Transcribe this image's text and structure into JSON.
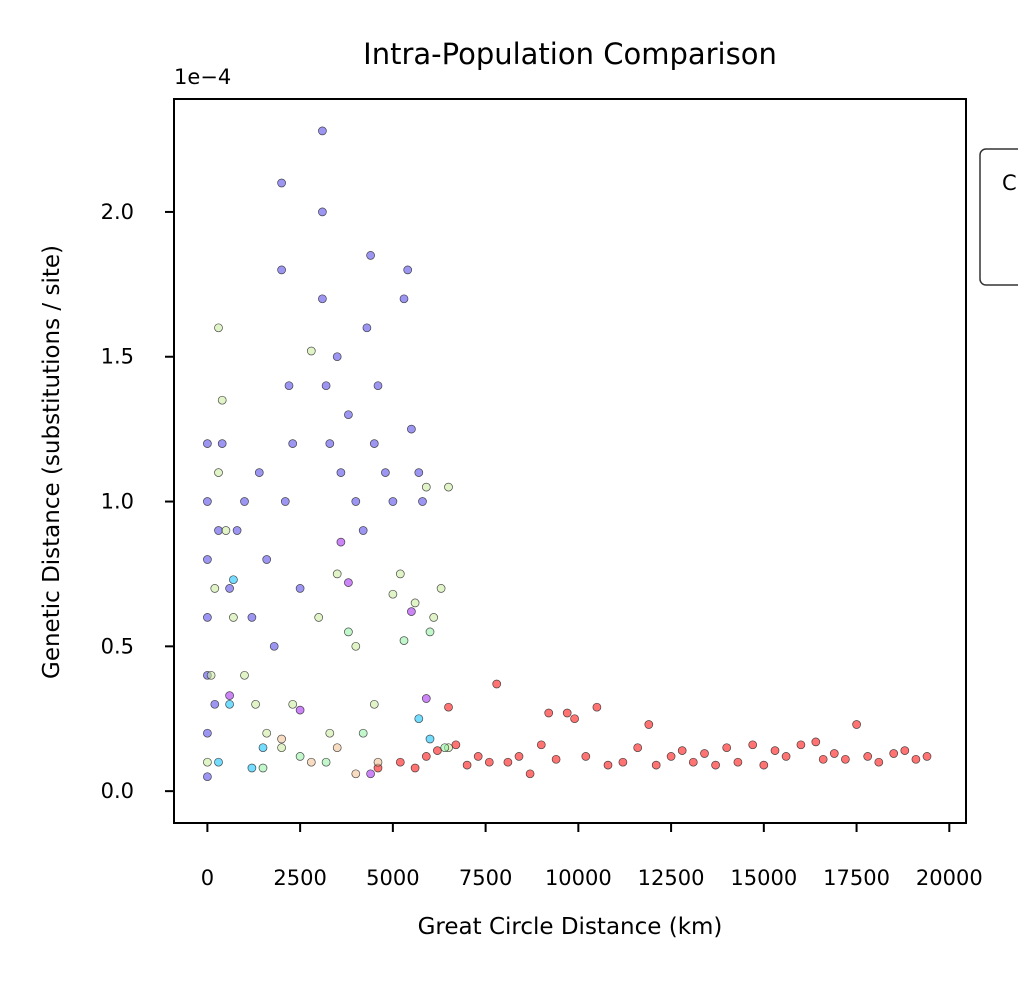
{
  "chart_data": {
    "type": "scatter",
    "title": "Intra-Population Comparison",
    "xlabel": "Great Circle Distance (km)",
    "ylabel": "Genetic Distance (substitutions / site)",
    "y_multiplier": "1e−4",
    "xlim": [
      -900,
      20450
    ],
    "ylim": [
      -0.11,
      2.39
    ],
    "x_ticks": [
      0,
      2500,
      5000,
      7500,
      10000,
      12500,
      15000,
      17500,
      20000
    ],
    "x_tick_labels": [
      "0",
      "2500",
      "5000",
      "7500",
      "10000",
      "12500",
      "15000",
      "17500",
      "20000"
    ],
    "y_ticks": [
      0.0,
      0.5,
      1.0,
      1.5,
      2.0
    ],
    "y_tick_labels": [
      "0.0",
      "0.5",
      "1.0",
      "1.5",
      "2.0"
    ],
    "grid": false,
    "legend_placement": "outside-right",
    "legend_visible_text": "C",
    "series": [
      {
        "color": "#ff0000",
        "points": [
          [
            4600,
            0.08
          ],
          [
            5200,
            0.1
          ],
          [
            5600,
            0.08
          ],
          [
            5900,
            0.12
          ],
          [
            6200,
            0.14
          ],
          [
            6500,
            0.29
          ],
          [
            6700,
            0.16
          ],
          [
            7000,
            0.09
          ],
          [
            7300,
            0.12
          ],
          [
            7600,
            0.1
          ],
          [
            7800,
            0.37
          ],
          [
            8100,
            0.1
          ],
          [
            8400,
            0.12
          ],
          [
            8700,
            0.06
          ],
          [
            9000,
            0.16
          ],
          [
            9200,
            0.27
          ],
          [
            9400,
            0.11
          ],
          [
            9700,
            0.27
          ],
          [
            9900,
            0.25
          ],
          [
            10200,
            0.12
          ],
          [
            10500,
            0.29
          ],
          [
            10800,
            0.09
          ],
          [
            11200,
            0.1
          ],
          [
            11600,
            0.15
          ],
          [
            11900,
            0.23
          ],
          [
            12100,
            0.09
          ],
          [
            12500,
            0.12
          ],
          [
            12800,
            0.14
          ],
          [
            13100,
            0.1
          ],
          [
            13400,
            0.13
          ],
          [
            13700,
            0.09
          ],
          [
            14000,
            0.15
          ],
          [
            14300,
            0.1
          ],
          [
            14700,
            0.16
          ],
          [
            15000,
            0.09
          ],
          [
            15300,
            0.14
          ],
          [
            15600,
            0.12
          ],
          [
            16000,
            0.16
          ],
          [
            16400,
            0.17
          ],
          [
            16600,
            0.11
          ],
          [
            16900,
            0.13
          ],
          [
            17200,
            0.11
          ],
          [
            17500,
            0.23
          ],
          [
            17800,
            0.12
          ],
          [
            18100,
            0.1
          ],
          [
            18500,
            0.13
          ],
          [
            18800,
            0.14
          ],
          [
            19100,
            0.11
          ],
          [
            19400,
            0.12
          ]
        ]
      },
      {
        "color": "#4a3fe8",
        "points": [
          [
            0,
            0.05
          ],
          [
            0,
            0.2
          ],
          [
            0,
            0.4
          ],
          [
            0,
            0.6
          ],
          [
            0,
            0.8
          ],
          [
            0,
            1.0
          ],
          [
            0,
            1.2
          ],
          [
            200,
            0.3
          ],
          [
            300,
            0.9
          ],
          [
            400,
            1.2
          ],
          [
            600,
            0.7
          ],
          [
            800,
            0.9
          ],
          [
            1000,
            1.0
          ],
          [
            1200,
            0.6
          ],
          [
            1400,
            1.1
          ],
          [
            1600,
            0.8
          ],
          [
            1800,
            0.5
          ],
          [
            2000,
            1.8
          ],
          [
            2000,
            2.1
          ],
          [
            2100,
            1.0
          ],
          [
            2200,
            1.4
          ],
          [
            2300,
            1.2
          ],
          [
            2500,
            0.7
          ],
          [
            3100,
            1.7
          ],
          [
            3100,
            2.0
          ],
          [
            3100,
            2.28
          ],
          [
            3200,
            1.4
          ],
          [
            3300,
            1.2
          ],
          [
            3500,
            1.5
          ],
          [
            3600,
            1.1
          ],
          [
            3800,
            1.3
          ],
          [
            4000,
            1.0
          ],
          [
            4200,
            0.9
          ],
          [
            4300,
            1.6
          ],
          [
            4400,
            1.85
          ],
          [
            4500,
            1.2
          ],
          [
            4600,
            1.4
          ],
          [
            4800,
            1.1
          ],
          [
            5000,
            1.0
          ],
          [
            5300,
            1.7
          ],
          [
            5400,
            1.8
          ],
          [
            5500,
            1.25
          ],
          [
            5700,
            1.1
          ],
          [
            5800,
            1.0
          ]
        ]
      },
      {
        "color": "#c8eb9b",
        "points": [
          [
            0,
            0.1
          ],
          [
            100,
            0.4
          ],
          [
            200,
            0.7
          ],
          [
            300,
            1.1
          ],
          [
            300,
            1.6
          ],
          [
            400,
            1.35
          ],
          [
            500,
            0.9
          ],
          [
            700,
            0.6
          ],
          [
            1000,
            0.4
          ],
          [
            1300,
            0.3
          ],
          [
            1600,
            0.2
          ],
          [
            2000,
            0.15
          ],
          [
            2300,
            0.3
          ],
          [
            2800,
            1.52
          ],
          [
            3000,
            0.6
          ],
          [
            3300,
            0.2
          ],
          [
            3500,
            0.75
          ],
          [
            4000,
            0.5
          ],
          [
            4500,
            0.3
          ],
          [
            5000,
            0.68
          ],
          [
            5200,
            0.75
          ],
          [
            5600,
            0.65
          ],
          [
            5900,
            1.05
          ],
          [
            6100,
            0.6
          ],
          [
            6300,
            0.7
          ],
          [
            6500,
            1.05
          ],
          [
            6500,
            0.15
          ]
        ]
      },
      {
        "color": "#8ef0a0",
        "points": [
          [
            1500,
            0.08
          ],
          [
            2500,
            0.12
          ],
          [
            3200,
            0.1
          ],
          [
            3800,
            0.55
          ],
          [
            4200,
            0.2
          ],
          [
            5300,
            0.52
          ],
          [
            6000,
            0.55
          ],
          [
            6400,
            0.15
          ]
        ]
      },
      {
        "color": "#00bfff",
        "points": [
          [
            300,
            0.1
          ],
          [
            600,
            0.3
          ],
          [
            700,
            0.73
          ],
          [
            1200,
            0.08
          ],
          [
            1500,
            0.15
          ],
          [
            5700,
            0.25
          ],
          [
            6000,
            0.18
          ]
        ]
      },
      {
        "color": "#a020f0",
        "points": [
          [
            600,
            0.33
          ],
          [
            2500,
            0.28
          ],
          [
            3600,
            0.86
          ],
          [
            3800,
            0.72
          ],
          [
            5500,
            0.62
          ],
          [
            5900,
            0.32
          ],
          [
            4400,
            0.06
          ]
        ]
      },
      {
        "color": "#f0c090",
        "points": [
          [
            2000,
            0.18
          ],
          [
            2800,
            0.1
          ],
          [
            3500,
            0.15
          ],
          [
            4000,
            0.06
          ],
          [
            4600,
            0.1
          ]
        ]
      }
    ]
  }
}
